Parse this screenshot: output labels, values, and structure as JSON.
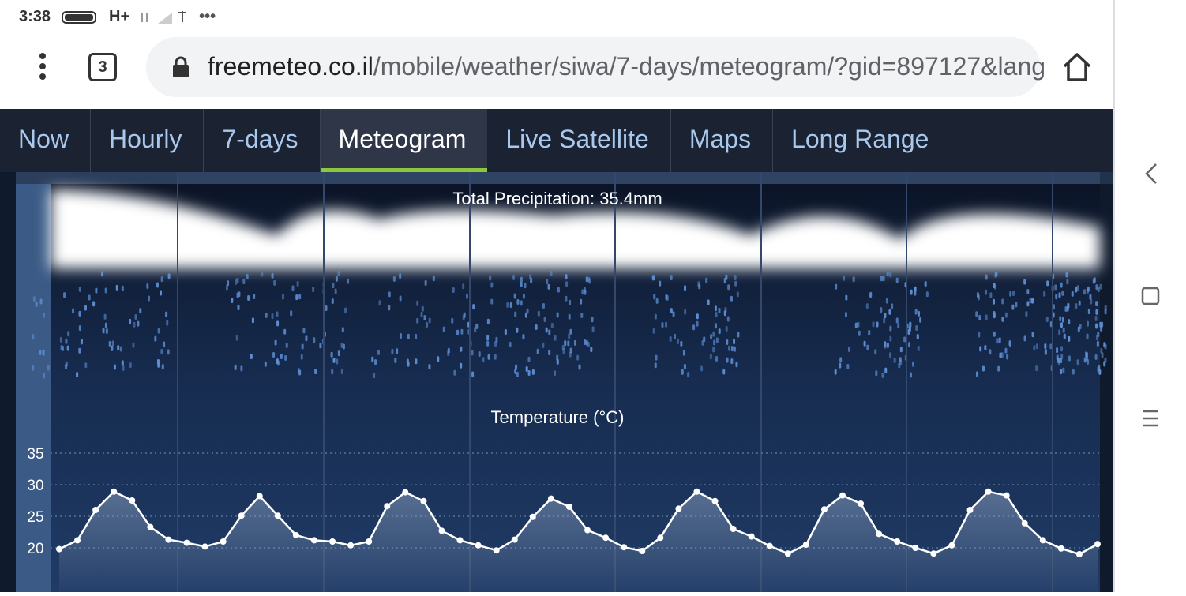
{
  "status_bar": {
    "time": "3:38",
    "network": "H+"
  },
  "browser": {
    "tab_count": "3",
    "url_host": "freemeteo.co.il",
    "url_path": "/mobile/weather/siwa/7-days/meteogram/?gid=897127&lang"
  },
  "nav_tabs": {
    "items": [
      "Now",
      "Hourly",
      "7-days",
      "Meteogram",
      "Live Satellite",
      "Maps",
      "Long Range"
    ],
    "active": 3
  },
  "meteogram": {
    "precipitation_title": "Total Precipitation: 35.4mm"
  },
  "chart_data": {
    "type": "line",
    "title": "Temperature (°C)",
    "color": "#ffffff",
    "grid": true,
    "ylim": [
      13,
      38
    ],
    "yticks": [
      20,
      25,
      30,
      35
    ],
    "values": [
      19.8,
      21.2,
      26,
      28.9,
      27.5,
      23.3,
      21.3,
      20.8,
      20.2,
      21,
      25.1,
      28.2,
      25.1,
      22,
      21.2,
      21,
      20.4,
      21,
      26.6,
      28.8,
      27.4,
      22.7,
      21.2,
      20.4,
      19.6,
      21.3,
      24.9,
      27.8,
      26.5,
      22.8,
      21.6,
      20.1,
      19.5,
      21.6,
      26.2,
      28.9,
      27.4,
      23,
      21.8,
      20.3,
      19.1,
      20.5,
      26.1,
      28.3,
      27,
      22.2,
      21,
      20,
      19.1,
      20.4,
      26,
      28.9,
      28.3,
      23.9,
      21.2,
      19.9,
      19,
      20.6
    ]
  }
}
